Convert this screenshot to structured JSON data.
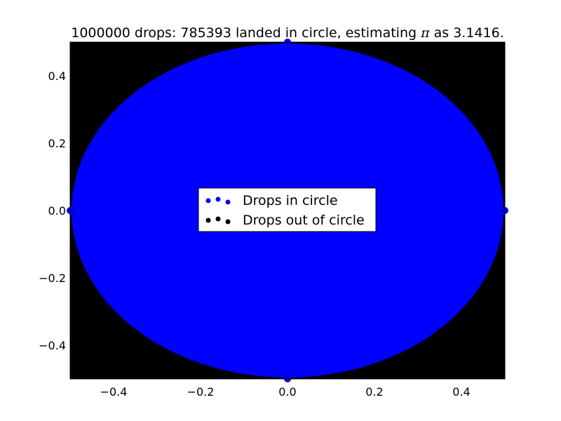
{
  "chart_data": {
    "type": "scatter",
    "title_parts": {
      "before": "1000000 drops: 785393 landed in circle, estimating ",
      "symbol": "π",
      "after": " as 3.1416."
    },
    "xlabel": "",
    "ylabel": "",
    "xlim": [
      -0.5,
      0.5
    ],
    "ylim": [
      -0.5,
      0.5
    ],
    "xticks": [
      -0.4,
      -0.2,
      0.0,
      0.2,
      0.4
    ],
    "yticks": [
      -0.4,
      -0.2,
      0.0,
      0.2,
      0.4
    ],
    "xtick_labels": [
      "−0.4",
      "−0.2",
      "0.0",
      "0.2",
      "0.4"
    ],
    "ytick_labels": [
      "0.4",
      "0.2",
      "0.0",
      "−0.2",
      "−0.4"
    ],
    "grid": false,
    "legend_position": "center",
    "total_drops": 1000000,
    "drops_in_circle": 785393,
    "pi_estimate": 3.1416,
    "circle": {
      "center": [
        0,
        0
      ],
      "radius": 0.5
    },
    "series": [
      {
        "name": "Drops in circle",
        "color": "#0000ff",
        "region": "inside circle of radius 0.5"
      },
      {
        "name": "Drops out of circle",
        "color": "#000000",
        "region": "outside circle, inside square"
      }
    ],
    "background_color": "#000000"
  }
}
